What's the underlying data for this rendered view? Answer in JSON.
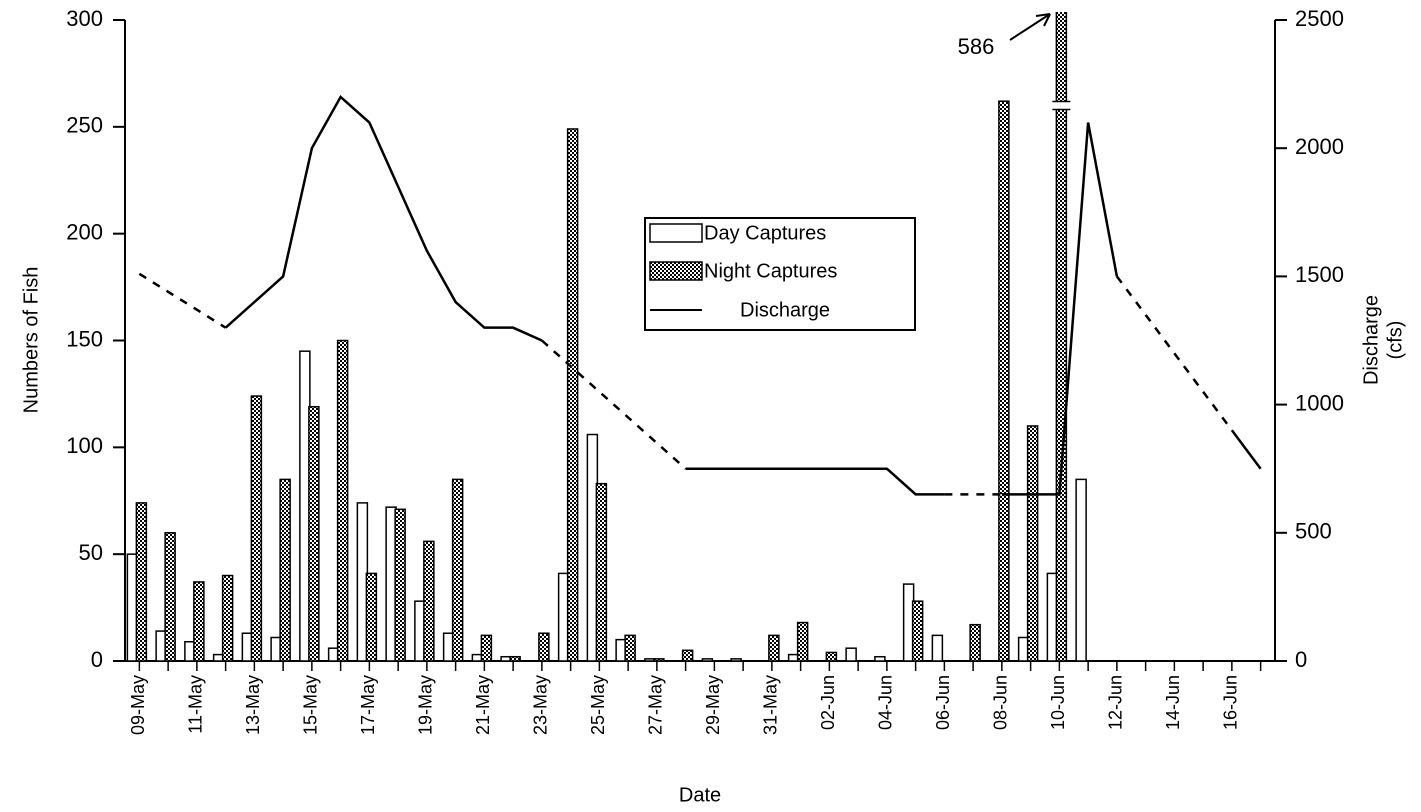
{
  "chart_data": {
    "type": "bar",
    "x_label": "Date",
    "y_label": "Numbers of Fish",
    "y2_label": [
      "Discharge",
      "(cfs)"
    ],
    "categories": [
      "09-May",
      null,
      "11-May",
      null,
      "13-May",
      null,
      "15-May",
      null,
      "17-May",
      null,
      "19-May",
      null,
      "21-May",
      null,
      "23-May",
      null,
      "25-May",
      null,
      "27-May",
      null,
      "29-May",
      null,
      "31-May",
      null,
      "02-Jun",
      null,
      "04-Jun",
      null,
      "06-Jun",
      null,
      "08-Jun",
      null,
      "10-Jun",
      null,
      "12-Jun",
      null,
      "14-Jun",
      null,
      "16-Jun",
      null
    ],
    "series": [
      {
        "name": "Day Captures",
        "color": "#ffffff",
        "values": [
          50,
          14,
          9,
          3,
          13,
          11,
          145,
          6,
          74,
          72,
          28,
          13,
          3,
          2,
          0,
          41,
          106,
          10,
          1,
          0,
          1,
          1,
          0,
          3,
          0,
          6,
          2,
          36,
          12,
          0,
          0,
          11,
          41,
          85,
          0,
          0,
          0,
          0,
          0,
          0
        ]
      },
      {
        "name": "Night Captures",
        "color": "#888888",
        "values": [
          74,
          60,
          37,
          40,
          124,
          85,
          119,
          150,
          41,
          71,
          56,
          85,
          12,
          2,
          13,
          249,
          83,
          12,
          1,
          5,
          0,
          0,
          12,
          18,
          4,
          0,
          0,
          28,
          0,
          17,
          262,
          110,
          586,
          0,
          0,
          0,
          0,
          0,
          0,
          0
        ]
      },
      {
        "name": "Discharge",
        "color": "#000000",
        "type": "line",
        "axis": "y2",
        "values": [
          1510,
          1440,
          1370,
          1300,
          1400,
          1500,
          2000,
          2200,
          2100,
          1850,
          1600,
          1400,
          1300,
          1300,
          1250,
          1150,
          1050,
          950,
          850,
          750,
          750,
          750,
          750,
          750,
          750,
          750,
          750,
          650,
          650,
          650,
          650,
          650,
          650,
          2100,
          1500,
          1350,
          1200,
          1050,
          900,
          750
        ],
        "dashed_segments": [
          [
            0,
            3
          ],
          [
            14,
            19
          ],
          [
            28,
            30
          ],
          [
            34,
            38
          ]
        ]
      }
    ],
    "ylim": [
      0,
      300
    ],
    "yticks": [
      0,
      50,
      100,
      150,
      200,
      250,
      300
    ],
    "y2lim": [
      0,
      2500
    ],
    "y2ticks": [
      0,
      500,
      1000,
      1500,
      2000,
      2500
    ]
  }
}
